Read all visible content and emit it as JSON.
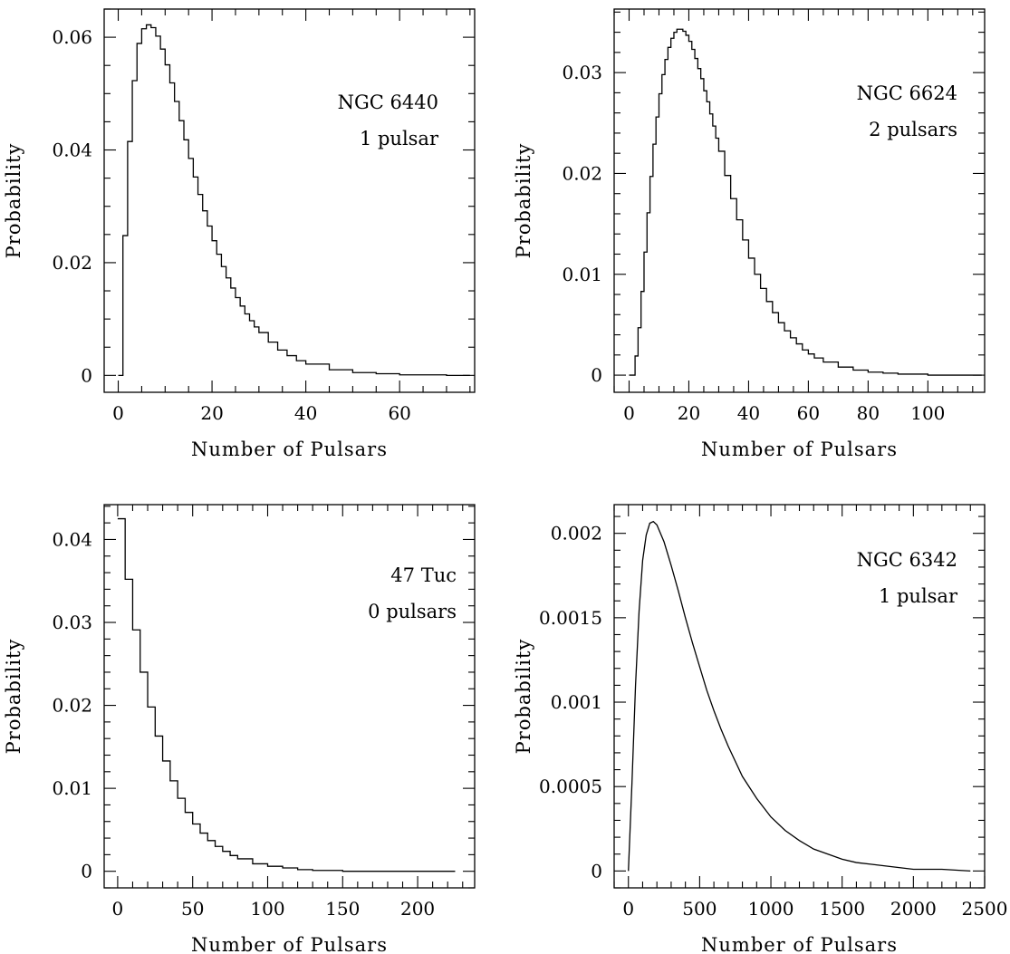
{
  "chart_data": [
    {
      "type": "line",
      "style": "histogram-step",
      "title": "",
      "xlabel": "Number of Pulsars",
      "ylabel": "Probability",
      "xlim": [
        -3,
        76
      ],
      "ylim": [
        -0.003,
        0.065
      ],
      "xticks": [
        0,
        20,
        40,
        60
      ],
      "xtick_labels": [
        "0",
        "20",
        "40",
        "60"
      ],
      "yticks": [
        0,
        0.02,
        0.04,
        0.06
      ],
      "ytick_labels": [
        "0",
        "0.02",
        "0.04",
        "0.06"
      ],
      "annotations": [
        "NGC 6440",
        "1 pulsar"
      ],
      "grid": false,
      "x": [
        0,
        1,
        2,
        3,
        4,
        5,
        6,
        7,
        8,
        9,
        10,
        11,
        12,
        13,
        14,
        15,
        16,
        17,
        18,
        19,
        20,
        21,
        22,
        23,
        24,
        25,
        26,
        27,
        28,
        29,
        30,
        32,
        34,
        36,
        38,
        40,
        45,
        50,
        55,
        60,
        65,
        70,
        75
      ],
      "y": [
        0,
        0.0248,
        0.0415,
        0.0523,
        0.0589,
        0.0615,
        0.0622,
        0.0617,
        0.0602,
        0.0579,
        0.0551,
        0.0519,
        0.0486,
        0.0452,
        0.0418,
        0.0385,
        0.0352,
        0.0321,
        0.0292,
        0.0265,
        0.0239,
        0.0215,
        0.0193,
        0.0173,
        0.0155,
        0.0138,
        0.0123,
        0.0109,
        0.0097,
        0.0086,
        0.0076,
        0.0059,
        0.0045,
        0.0035,
        0.0026,
        0.002,
        0.001,
        0.0005,
        0.0003,
        0.0001,
        0.0001,
        0,
        0
      ]
    },
    {
      "type": "line",
      "style": "histogram-step",
      "title": "",
      "xlabel": "Number of Pulsars",
      "ylabel": "Probability",
      "xlim": [
        -5,
        119
      ],
      "ylim": [
        -0.0017,
        0.0363
      ],
      "xticks": [
        0,
        20,
        40,
        60,
        80,
        100
      ],
      "xtick_labels": [
        "0",
        "20",
        "40",
        "60",
        "80",
        "100"
      ],
      "yticks": [
        0,
        0.01,
        0.02,
        0.03
      ],
      "ytick_labels": [
        "0",
        "0.01",
        "0.02",
        "0.03"
      ],
      "annotations": [
        "NGC 6624",
        "2 pulsars"
      ],
      "grid": false,
      "x": [
        0,
        2,
        3,
        4,
        5,
        6,
        7,
        8,
        9,
        10,
        11,
        12,
        13,
        14,
        15,
        16,
        17,
        18,
        19,
        20,
        21,
        22,
        23,
        24,
        25,
        26,
        27,
        28,
        29,
        30,
        32,
        34,
        36,
        38,
        40,
        42,
        44,
        46,
        48,
        50,
        52,
        54,
        56,
        58,
        60,
        62,
        65,
        70,
        75,
        80,
        85,
        90,
        100,
        110,
        118
      ],
      "y": [
        0,
        0.0019,
        0.0047,
        0.0083,
        0.0122,
        0.0161,
        0.0197,
        0.0229,
        0.0256,
        0.0279,
        0.0298,
        0.0313,
        0.0325,
        0.0334,
        0.034,
        0.0343,
        0.0343,
        0.0341,
        0.0337,
        0.0331,
        0.0323,
        0.0314,
        0.0304,
        0.0294,
        0.0282,
        0.0271,
        0.0259,
        0.0247,
        0.0235,
        0.0222,
        0.0198,
        0.0175,
        0.0154,
        0.0134,
        0.0116,
        0.01,
        0.0086,
        0.0073,
        0.0062,
        0.0052,
        0.0044,
        0.0037,
        0.0031,
        0.0025,
        0.0021,
        0.0017,
        0.0013,
        0.0008,
        0.0005,
        0.0003,
        0.0002,
        0.0001,
        0,
        0,
        0
      ]
    },
    {
      "type": "line",
      "style": "histogram-step",
      "title": "",
      "xlabel": "Number of Pulsars",
      "ylabel": "Probability",
      "xlim": [
        -9,
        238
      ],
      "ylim": [
        -0.002,
        0.0442
      ],
      "xticks": [
        0,
        50,
        100,
        150,
        200
      ],
      "xtick_labels": [
        "0",
        "50",
        "100",
        "150",
        "200"
      ],
      "yticks": [
        0,
        0.01,
        0.02,
        0.03,
        0.04
      ],
      "ytick_labels": [
        "0",
        "0.01",
        "0.02",
        "0.03",
        "0.04"
      ],
      "annotations": [
        "47 Tuc",
        "0 pulsars"
      ],
      "grid": false,
      "x": [
        0,
        5,
        10,
        15,
        20,
        25,
        30,
        35,
        40,
        45,
        50,
        55,
        60,
        65,
        70,
        75,
        80,
        90,
        100,
        110,
        120,
        130,
        140,
        150,
        160,
        170,
        180,
        190,
        200,
        210,
        220,
        225
      ],
      "y": [
        0.0425,
        0.0352,
        0.0291,
        0.024,
        0.0198,
        0.0163,
        0.0133,
        0.0109,
        0.0088,
        0.0071,
        0.0057,
        0.0046,
        0.0037,
        0.003,
        0.0024,
        0.0019,
        0.0015,
        0.0009,
        0.0006,
        0.0004,
        0.0002,
        0.0001,
        0.0001,
        0,
        0,
        0,
        0,
        0,
        0,
        0,
        0,
        0
      ]
    },
    {
      "type": "line",
      "style": "smooth",
      "title": "",
      "xlabel": "Number of Pulsars",
      "ylabel": "Probability",
      "xlim": [
        -100,
        2500
      ],
      "ylim": [
        -0.0001,
        0.00217
      ],
      "xticks": [
        0,
        500,
        1000,
        1500,
        2000,
        2500
      ],
      "xtick_labels": [
        "0",
        "500",
        "1000",
        "1500",
        "2000",
        "2500"
      ],
      "yticks": [
        0,
        0.0005,
        0.001,
        0.0015,
        0.002
      ],
      "ytick_labels": [
        "0",
        "0.0005",
        "0.001",
        "0.0015",
        "0.002"
      ],
      "annotations": [
        "NGC 6342",
        "1 pulsar"
      ],
      "grid": false,
      "x": [
        0,
        25,
        50,
        75,
        100,
        125,
        150,
        175,
        200,
        250,
        300,
        350,
        400,
        450,
        500,
        550,
        600,
        650,
        700,
        800,
        900,
        1000,
        1100,
        1200,
        1300,
        1400,
        1500,
        1600,
        1700,
        1800,
        1900,
        2000,
        2200,
        2400
      ],
      "y": [
        0,
        0.00052,
        0.0011,
        0.00154,
        0.00184,
        0.00199,
        0.00206,
        0.00207,
        0.00205,
        0.00195,
        0.00181,
        0.00166,
        0.0015,
        0.00135,
        0.00121,
        0.00107,
        0.00095,
        0.00084,
        0.00074,
        0.00056,
        0.00043,
        0.00032,
        0.00024,
        0.00018,
        0.00013,
        0.0001,
        7e-05,
        5e-05,
        4e-05,
        3e-05,
        2e-05,
        1e-05,
        1e-05,
        0
      ]
    }
  ]
}
